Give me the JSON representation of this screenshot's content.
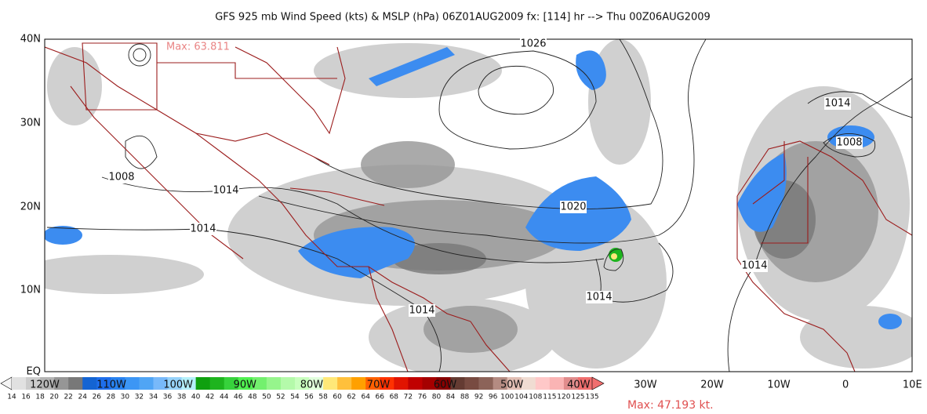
{
  "title": "GFS 925 mb Wind Speed (kts) & MSLP (hPa) 06Z01AUG2009 fx: [114] hr --> Thu 00Z06AUG2009",
  "lat_labels": [
    "40N",
    "30N",
    "20N",
    "10N",
    "EQ"
  ],
  "lon_labels": [
    "120W",
    "110W",
    "100W",
    "90W",
    "80W",
    "70W",
    "60W",
    "50W",
    "40W",
    "30W",
    "20W",
    "10W",
    "0",
    "10E"
  ],
  "contour_labels": [
    "1026",
    "1014",
    "1008",
    "1008",
    "1014",
    "1020",
    "1014",
    "1014",
    "1014",
    "1014"
  ],
  "max_labels": [
    "Max: 63.811",
    "Max: 47.193 kt."
  ],
  "colorbar": {
    "labels": [
      14,
      16,
      18,
      20,
      22,
      24,
      26,
      28,
      30,
      32,
      34,
      36,
      38,
      40,
      42,
      44,
      46,
      48,
      50,
      52,
      54,
      56,
      58,
      60,
      62,
      64,
      66,
      68,
      72,
      76,
      80,
      84,
      88,
      92,
      96,
      100,
      104,
      108,
      115,
      120,
      125,
      135
    ],
    "colors": [
      "#e1e1e1",
      "#cccccc",
      "#b4b4b4",
      "#969696",
      "#787878",
      "#1464d2",
      "#1e6eeb",
      "#2882f0",
      "#3c96f5",
      "#50a5f5",
      "#78b9fa",
      "#96d2fa",
      "#b4f0fa",
      "#0fa00f",
      "#1eb41e",
      "#37d23c",
      "#50f050",
      "#73f06e",
      "#96f58c",
      "#b4faaa",
      "#c8ffbe",
      "#e1ffdc",
      "#ffe878",
      "#ffc03c",
      "#ffa000",
      "#ff6000",
      "#ff3200",
      "#e11400",
      "#c00000",
      "#a50000",
      "#870000",
      "#643b32",
      "#784b41",
      "#8c6359",
      "#b48b82",
      "#e1beb4",
      "#f0dcd2",
      "#ffc8c8",
      "#fab4b4",
      "#e18c8c",
      "#f06e6e"
    ]
  }
}
